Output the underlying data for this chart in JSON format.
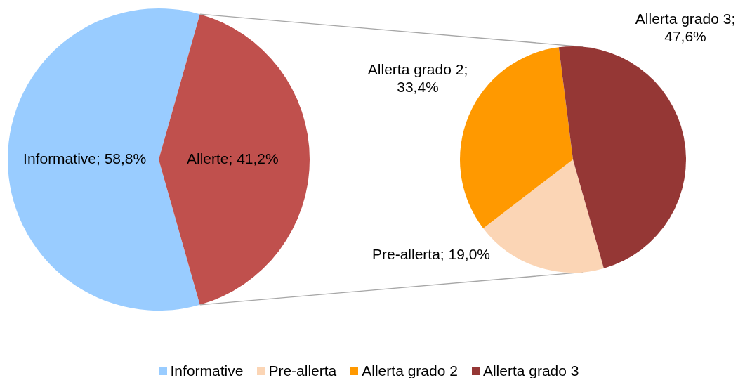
{
  "chart_data": [
    {
      "type": "pie",
      "categories": [
        "Informative",
        "Allerte"
      ],
      "values": [
        58.8,
        41.2
      ],
      "colors": [
        "#99ccff",
        "#c0504d"
      ],
      "value_labels": [
        "; 58,8%",
        "; 41,2%"
      ],
      "legend": "bottom"
    },
    {
      "type": "pie",
      "categories": [
        "Pre-allerta",
        "Allerta grado 2",
        "Allerta grado 3"
      ],
      "values": [
        19.0,
        33.4,
        47.6
      ],
      "colors": [
        "#fbd5b5",
        "#ff9900",
        "#953735"
      ],
      "value_labels": [
        "; 19,0%",
        "; 33,4%",
        "; 47,6%"
      ],
      "legend": "bottom"
    }
  ]
}
